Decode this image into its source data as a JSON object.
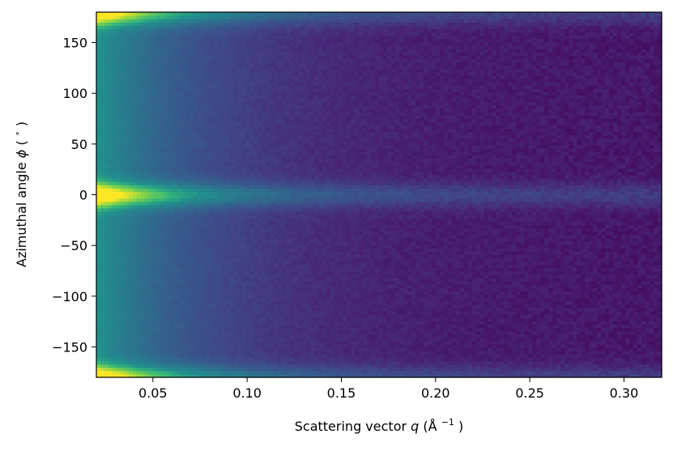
{
  "chart_data": {
    "type": "heatmap",
    "title": "",
    "xlabel": "Scattering vector",
    "xlabel_var": "q",
    "xlabel_unit": "(Å",
    "xlabel_unit_exp": "−1",
    "xlabel_unit_close": ")",
    "ylabel": "Azimuthal angle",
    "ylabel_var": "ϕ",
    "ylabel_unit": "(",
    "ylabel_unit_deg": "∘",
    "ylabel_unit_close": ")",
    "xlim": [
      0.02,
      0.32
    ],
    "ylim": [
      -180,
      180
    ],
    "xticks": [
      0.05,
      0.1,
      0.15,
      0.2,
      0.25,
      0.3
    ],
    "xtick_labels": [
      "0.05",
      "0.10",
      "0.15",
      "0.20",
      "0.25",
      "0.30"
    ],
    "yticks": [
      150,
      100,
      50,
      0,
      -50,
      -100,
      -150
    ],
    "ytick_labels": [
      "150",
      "100",
      "50",
      "0",
      "−50",
      "−100",
      "−150"
    ],
    "grid": false,
    "colormap": "viridis",
    "intensity_model": {
      "description_of_values": "normalized intensity 0-1 vs q and phi",
      "q_decay_exponent": 1.5,
      "streak_centers_deg": [
        0,
        180,
        -180
      ],
      "streak_width_deg": 12,
      "streak_boost": 0.55,
      "noise": 0.06
    }
  }
}
